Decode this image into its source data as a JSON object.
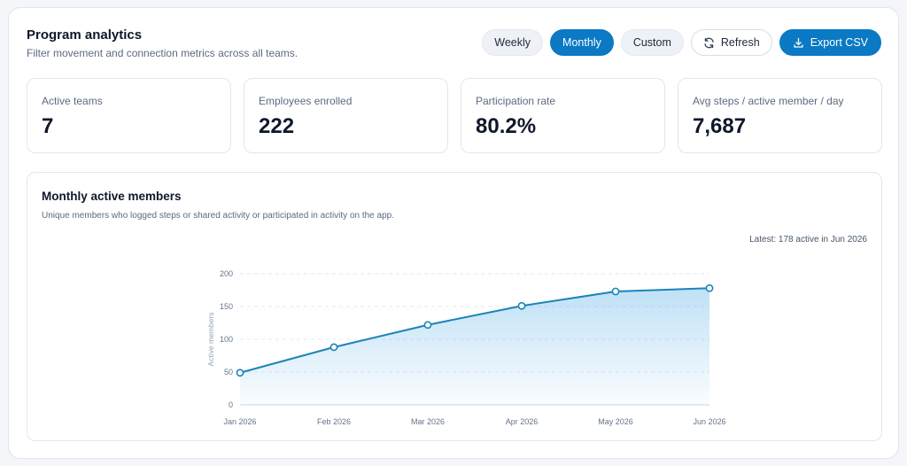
{
  "header": {
    "title": "Program analytics",
    "subtitle": "Filter movement and connection metrics across all teams."
  },
  "toolbar": {
    "weekly": "Weekly",
    "monthly": "Monthly",
    "custom": "Custom",
    "refresh": "Refresh",
    "export": "Export CSV",
    "selected": "Monthly",
    "accent": "#0b79c4"
  },
  "metrics": [
    {
      "label": "Active teams",
      "value": "7"
    },
    {
      "label": "Employees enrolled",
      "value": "222"
    },
    {
      "label": "Participation rate",
      "value": "80.2%"
    },
    {
      "label": "Avg steps / active member / day",
      "value": "7,687"
    }
  ],
  "chart": {
    "title": "Monthly active members",
    "subtitle": "Unique members who logged steps or shared activity or participated in activity on the app.",
    "latest": "Latest: 178 active in Jun 2026"
  },
  "chart_data": {
    "type": "area",
    "categories": [
      "Jan 2026",
      "Feb 2026",
      "Mar 2026",
      "Apr 2026",
      "May 2026",
      "Jun 2026"
    ],
    "series": [
      {
        "values": [
          49,
          88,
          122,
          151,
          173,
          178
        ]
      }
    ],
    "ylabel": "Active members",
    "ylim": [
      0,
      200
    ],
    "yticks": [
      0,
      50,
      100,
      150,
      200
    ],
    "grid": true,
    "color": "#1b84b8"
  }
}
